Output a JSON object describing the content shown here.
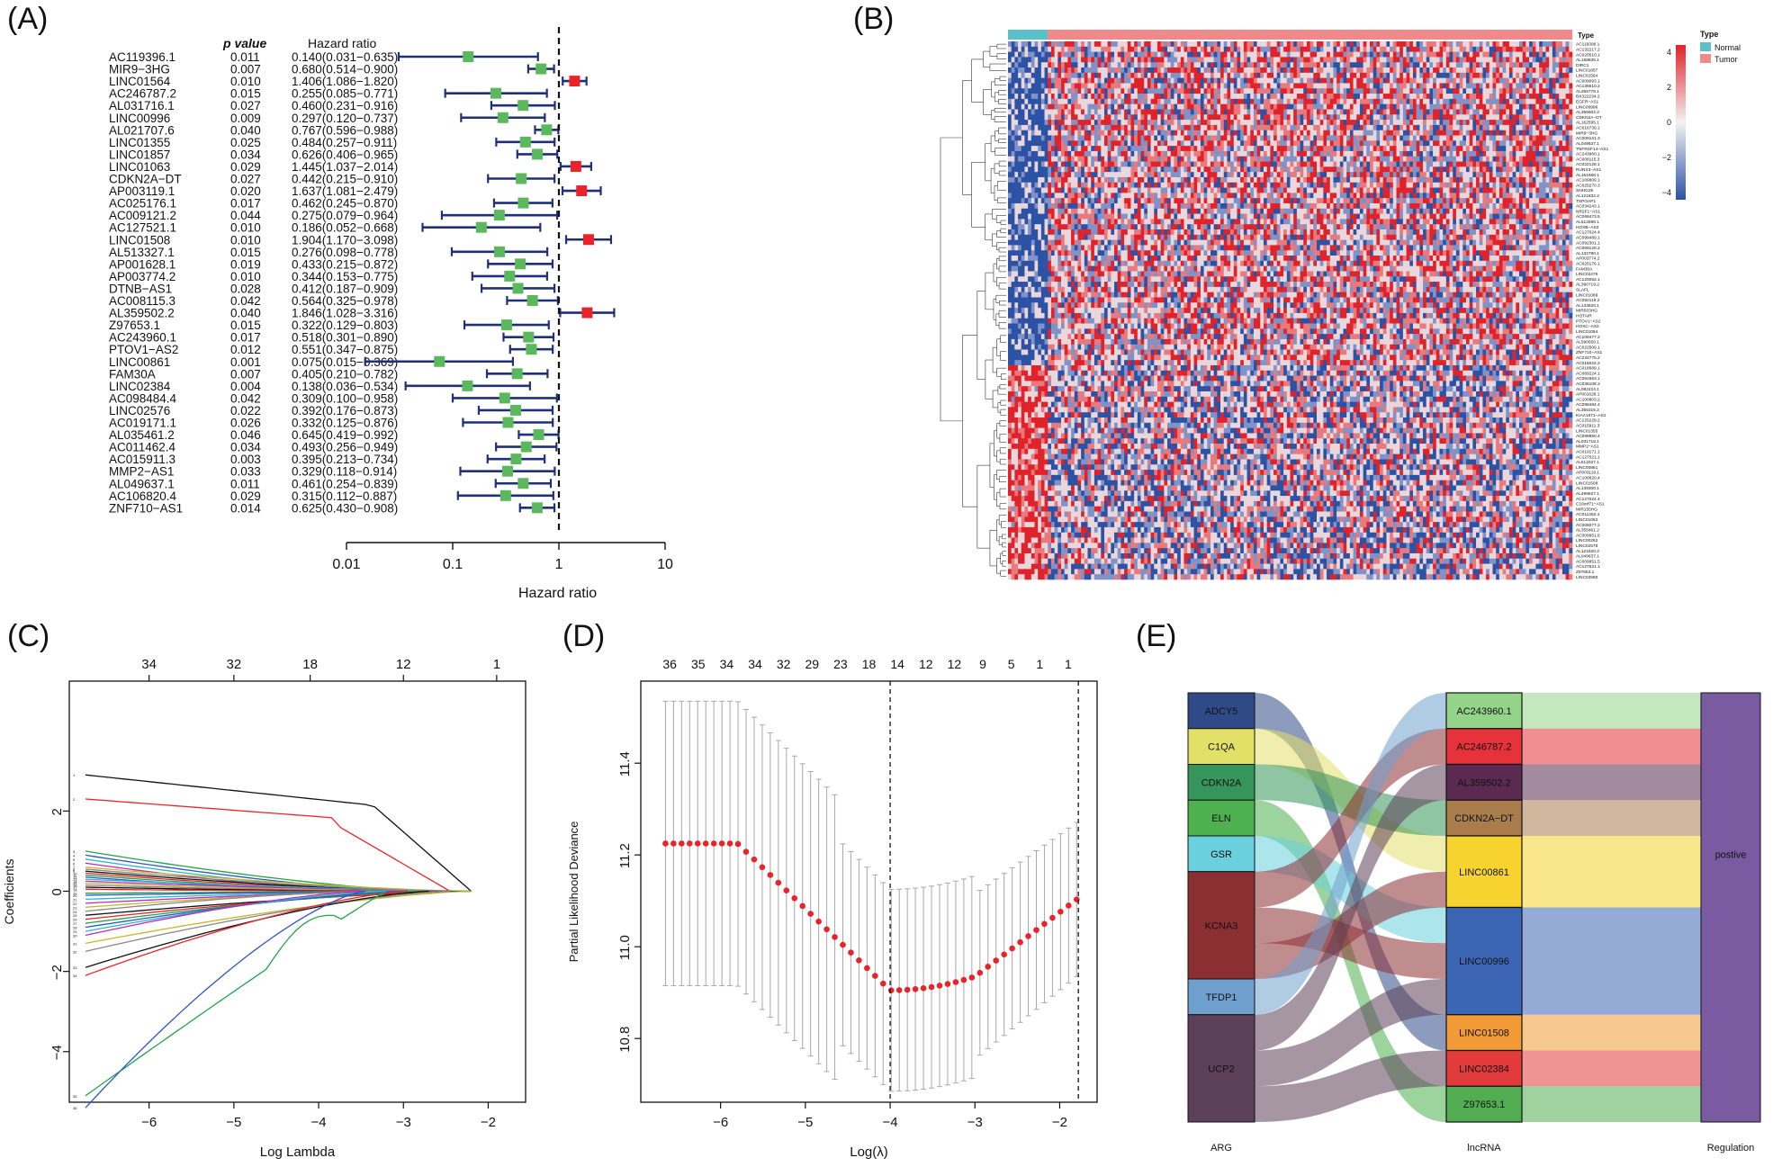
{
  "panels": {
    "A": "(A)",
    "B": "(B)",
    "C": "(C)",
    "D": "(D)",
    "E": "(E)"
  },
  "forest": {
    "headers": {
      "pvalue": "p value",
      "hr": "Hazard ratio"
    },
    "xlabel": "Hazard ratio",
    "xticks": [
      "0.01",
      "0.1",
      "1",
      "10"
    ],
    "colors": {
      "protective": "#5cb85c",
      "risk": "#e8242a",
      "ci": "#1f2f7a"
    },
    "rows": [
      {
        "gene": "AC119396.1",
        "p": "0.011",
        "hr_text": "0.140(0.031−0.635)",
        "hr": 0.14,
        "lo": 0.031,
        "hi": 0.635
      },
      {
        "gene": "MIR9−3HG",
        "p": "0.007",
        "hr_text": "0.680(0.514−0.900)",
        "hr": 0.68,
        "lo": 0.514,
        "hi": 0.9
      },
      {
        "gene": "LINC01564",
        "p": "0.010",
        "hr_text": "1.406(1.086−1.820)",
        "hr": 1.406,
        "lo": 1.086,
        "hi": 1.82
      },
      {
        "gene": "AC246787.2",
        "p": "0.015",
        "hr_text": "0.255(0.085−0.771)",
        "hr": 0.255,
        "lo": 0.085,
        "hi": 0.771
      },
      {
        "gene": "AL031716.1",
        "p": "0.027",
        "hr_text": "0.460(0.231−0.916)",
        "hr": 0.46,
        "lo": 0.231,
        "hi": 0.916
      },
      {
        "gene": "LINC00996",
        "p": "0.009",
        "hr_text": "0.297(0.120−0.737)",
        "hr": 0.297,
        "lo": 0.12,
        "hi": 0.737
      },
      {
        "gene": "AL021707.6",
        "p": "0.040",
        "hr_text": "0.767(0.596−0.988)",
        "hr": 0.767,
        "lo": 0.596,
        "hi": 0.988
      },
      {
        "gene": "LINC01355",
        "p": "0.025",
        "hr_text": "0.484(0.257−0.911)",
        "hr": 0.484,
        "lo": 0.257,
        "hi": 0.911
      },
      {
        "gene": "LINC01857",
        "p": "0.034",
        "hr_text": "0.626(0.406−0.965)",
        "hr": 0.626,
        "lo": 0.406,
        "hi": 0.965
      },
      {
        "gene": "LINC01063",
        "p": "0.029",
        "hr_text": "1.445(1.037−2.014)",
        "hr": 1.445,
        "lo": 1.037,
        "hi": 2.014
      },
      {
        "gene": "CDKN2A−DT",
        "p": "0.027",
        "hr_text": "0.442(0.215−0.910)",
        "hr": 0.442,
        "lo": 0.215,
        "hi": 0.91
      },
      {
        "gene": "AP003119.1",
        "p": "0.020",
        "hr_text": "1.637(1.081−2.479)",
        "hr": 1.637,
        "lo": 1.081,
        "hi": 2.479
      },
      {
        "gene": "AC025176.1",
        "p": "0.017",
        "hr_text": "0.462(0.245−0.870)",
        "hr": 0.462,
        "lo": 0.245,
        "hi": 0.87
      },
      {
        "gene": "AC009121.2",
        "p": "0.044",
        "hr_text": "0.275(0.079−0.964)",
        "hr": 0.275,
        "lo": 0.079,
        "hi": 0.964
      },
      {
        "gene": "AC127521.1",
        "p": "0.010",
        "hr_text": "0.186(0.052−0.668)",
        "hr": 0.186,
        "lo": 0.052,
        "hi": 0.668
      },
      {
        "gene": "LINC01508",
        "p": "0.010",
        "hr_text": "1.904(1.170−3.098)",
        "hr": 1.904,
        "lo": 1.17,
        "hi": 3.098
      },
      {
        "gene": "AL513327.1",
        "p": "0.015",
        "hr_text": "0.276(0.098−0.778)",
        "hr": 0.276,
        "lo": 0.098,
        "hi": 0.778
      },
      {
        "gene": "AP001628.1",
        "p": "0.019",
        "hr_text": "0.433(0.215−0.872)",
        "hr": 0.433,
        "lo": 0.215,
        "hi": 0.872
      },
      {
        "gene": "AP003774.2",
        "p": "0.010",
        "hr_text": "0.344(0.153−0.775)",
        "hr": 0.344,
        "lo": 0.153,
        "hi": 0.775
      },
      {
        "gene": "DTNB−AS1",
        "p": "0.028",
        "hr_text": "0.412(0.187−0.909)",
        "hr": 0.412,
        "lo": 0.187,
        "hi": 0.909
      },
      {
        "gene": "AC008115.3",
        "p": "0.042",
        "hr_text": "0.564(0.325−0.978)",
        "hr": 0.564,
        "lo": 0.325,
        "hi": 0.978
      },
      {
        "gene": "AL359502.2",
        "p": "0.040",
        "hr_text": "1.846(1.028−3.316)",
        "hr": 1.846,
        "lo": 1.028,
        "hi": 3.316
      },
      {
        "gene": "Z97653.1",
        "p": "0.015",
        "hr_text": "0.322(0.129−0.803)",
        "hr": 0.322,
        "lo": 0.129,
        "hi": 0.803
      },
      {
        "gene": "AC243960.1",
        "p": "0.017",
        "hr_text": "0.518(0.301−0.890)",
        "hr": 0.518,
        "lo": 0.301,
        "hi": 0.89
      },
      {
        "gene": "PTOV1−AS2",
        "p": "0.012",
        "hr_text": "0.551(0.347−0.875)",
        "hr": 0.551,
        "lo": 0.347,
        "hi": 0.875
      },
      {
        "gene": "LINC00861",
        "p": "0.001",
        "hr_text": "0.075(0.015−0.369)",
        "hr": 0.075,
        "lo": 0.015,
        "hi": 0.369
      },
      {
        "gene": "FAM30A",
        "p": "0.007",
        "hr_text": "0.405(0.210−0.782)",
        "hr": 0.405,
        "lo": 0.21,
        "hi": 0.782
      },
      {
        "gene": "LINC02384",
        "p": "0.004",
        "hr_text": "0.138(0.036−0.534)",
        "hr": 0.138,
        "lo": 0.036,
        "hi": 0.534
      },
      {
        "gene": "AC098484.4",
        "p": "0.042",
        "hr_text": "0.309(0.100−0.958)",
        "hr": 0.309,
        "lo": 0.1,
        "hi": 0.958
      },
      {
        "gene": "LINC02576",
        "p": "0.022",
        "hr_text": "0.392(0.176−0.873)",
        "hr": 0.392,
        "lo": 0.176,
        "hi": 0.873
      },
      {
        "gene": "AC019171.1",
        "p": "0.026",
        "hr_text": "0.332(0.125−0.876)",
        "hr": 0.332,
        "lo": 0.125,
        "hi": 0.876
      },
      {
        "gene": "AL035461.2",
        "p": "0.046",
        "hr_text": "0.645(0.419−0.992)",
        "hr": 0.645,
        "lo": 0.419,
        "hi": 0.992
      },
      {
        "gene": "AC011462.4",
        "p": "0.034",
        "hr_text": "0.493(0.256−0.949)",
        "hr": 0.493,
        "lo": 0.256,
        "hi": 0.949
      },
      {
        "gene": "AC015911.3",
        "p": "0.003",
        "hr_text": "0.395(0.213−0.734)",
        "hr": 0.395,
        "lo": 0.213,
        "hi": 0.734
      },
      {
        "gene": "MMP2−AS1",
        "p": "0.033",
        "hr_text": "0.329(0.118−0.914)",
        "hr": 0.329,
        "lo": 0.118,
        "hi": 0.914
      },
      {
        "gene": "AL049637.1",
        "p": "0.011",
        "hr_text": "0.461(0.254−0.839)",
        "hr": 0.461,
        "lo": 0.254,
        "hi": 0.839
      },
      {
        "gene": "AC106820.4",
        "p": "0.029",
        "hr_text": "0.315(0.112−0.887)",
        "hr": 0.315,
        "lo": 0.112,
        "hi": 0.887
      },
      {
        "gene": "ZNF710−AS1",
        "p": "0.014",
        "hr_text": "0.625(0.430−0.908)",
        "hr": 0.625,
        "lo": 0.43,
        "hi": 0.908
      }
    ]
  },
  "heatmap": {
    "type_label": "Type",
    "legend_title": "Type",
    "legend_normal": "Normal",
    "legend_tumor": "Tumor",
    "scale_ticks": [
      "4",
      "2",
      "0",
      "−2",
      "−4"
    ],
    "colors": {
      "normal": "#5bc0c8",
      "tumor": "#f08a8a",
      "high": "#e0232a",
      "mid": "#f2f2f2",
      "low": "#2c52a5"
    },
    "genes": [
      "AC119396.1",
      "AC132217.2",
      "AC020510.1",
      "AL158835.1",
      "DIRC1",
      "LINC01857",
      "LINC01564",
      "AC009093.1",
      "AC136510.2",
      "AL355779.1",
      "BX322234.2",
      "EGFR−AS1",
      "LINC00996",
      "AL356602.2",
      "CDKN2A−DT",
      "AL162595.1",
      "AC016739.1",
      "MIR9−3HG",
      "AC009121.3",
      "AL049637.1",
      "TNFRSF14−AS1",
      "AC243960.1",
      "AC008115.3",
      "AC022128.1",
      "RUNX3−AS1",
      "AL161668.1",
      "AC109809.1",
      "AC025270.3",
      "SNHG25",
      "AL121832.2",
      "TSPOAP1",
      "AC034243.1",
      "NR2F1−AS1",
      "AC068473.5",
      "AL512598.1",
      "HOXB−AS3",
      "AC127024.4",
      "AC099489.1",
      "AC092301.1",
      "AC009120.2",
      "AL132780.1",
      "AP003774.2",
      "AC025176.1",
      "FAM30A",
      "LINC02476",
      "AC120053.1",
      "AL390719.2",
      "SLAFL",
      "LINC01089",
      "AC092119.2",
      "AL133520.1",
      "MIR503HG",
      "HOTAIR",
      "PTOV1−AS2",
      "HOXC−AS2",
      "LINC01094",
      "AC108477.2",
      "AL590550.1",
      "AC022509.1",
      "ZNF710−AS1",
      "AC234775.2",
      "AC016022.2",
      "AC018689.1",
      "AC069224.1",
      "AC091563.1",
      "AC036108.3",
      "AL082424.1",
      "AP001628.1",
      "AC100803.2",
      "AC098484.4",
      "AL355316.2",
      "KIAA1671−AS1",
      "AC125229.2",
      "AC015911.3",
      "LINC01355",
      "AC098850.4",
      "AL031716.1",
      "MMP2−AS1",
      "AC019171.1",
      "AC127521.1",
      "AL513327.1",
      "LINC00861",
      "AP003119.1",
      "AC106820.4",
      "LINC01508",
      "AL139300.1",
      "AL499627.1",
      "AC127024.4",
      "C10orf71−AS1",
      "MIR155HG",
      "AC011462.4",
      "LINC01063",
      "AC006077.2",
      "AL355461.2",
      "AC009951.6",
      "LINC00262",
      "LINC02576",
      "AL121820.2",
      "AL049637.1",
      "AC009951.5",
      "AC127521.1",
      "Z97653.1",
      "LINC02580"
    ]
  },
  "lasso": {
    "xlabel": "Log Lambda",
    "ylabel": "Coefficients",
    "xticks": [
      "−6",
      "−5",
      "−4",
      "−3",
      "−2"
    ],
    "yticks": [
      "2",
      "0",
      "−2",
      "−4"
    ],
    "top_ticks": [
      "34",
      "32",
      "18",
      "12",
      "1"
    ]
  },
  "cv": {
    "xlabel": "Log(λ)",
    "ylabel": "Partial Likelihood Deviance",
    "xticks": [
      "−6",
      "−5",
      "−4",
      "−3",
      "−2"
    ],
    "yticks": [
      "11.4",
      "11.2",
      "11.0",
      "10.8"
    ],
    "top_ticks": [
      "36",
      "35",
      "34",
      "34",
      "32",
      "29",
      "23",
      "18",
      "14",
      "12",
      "12",
      "9",
      "5",
      "1",
      "1"
    ],
    "point_color": "#e8242a"
  },
  "sankey": {
    "col_labels": {
      "arg": "ARG",
      "lnc": "lncRNA",
      "reg": "Regulation"
    },
    "args": [
      {
        "name": "ADCY5",
        "color": "#2f4a86",
        "w": 1
      },
      {
        "name": "C1QA",
        "color": "#e3e068",
        "w": 1
      },
      {
        "name": "CDKN2A",
        "color": "#35955a",
        "w": 1
      },
      {
        "name": "ELN",
        "color": "#4cb14e",
        "w": 1
      },
      {
        "name": "GSR",
        "color": "#6ad0de",
        "w": 1
      },
      {
        "name": "KCNA3",
        "color": "#8c2f33",
        "w": 3
      },
      {
        "name": "TFDP1",
        "color": "#6fa0cd",
        "w": 1
      },
      {
        "name": "UCP2",
        "color": "#5c3f58",
        "w": 3
      }
    ],
    "lncs": [
      {
        "name": "AC243960.1",
        "color": "#93d38a",
        "w": 1
      },
      {
        "name": "AC246787.2",
        "color": "#e6323a",
        "w": 1
      },
      {
        "name": "AL359502.2",
        "color": "#5a2a50",
        "w": 1
      },
      {
        "name": "CDKN2A−DT",
        "color": "#a97c4c",
        "w": 1
      },
      {
        "name": "LINC00861",
        "color": "#f6d32e",
        "w": 2
      },
      {
        "name": "LINC00996",
        "color": "#3c66b4",
        "w": 3
      },
      {
        "name": "LINC01508",
        "color": "#f29a36",
        "w": 1
      },
      {
        "name": "LINC02384",
        "color": "#e23b3b",
        "w": 1
      },
      {
        "name": "Z97653.1",
        "color": "#52ad52",
        "w": 1
      }
    ],
    "links": [
      {
        "s": "ADCY5",
        "t": "LINC01508"
      },
      {
        "s": "C1QA",
        "t": "LINC00861"
      },
      {
        "s": "CDKN2A",
        "t": "CDKN2A−DT"
      },
      {
        "s": "ELN",
        "t": "Z97653.1"
      },
      {
        "s": "GSR",
        "t": "LINC00996"
      },
      {
        "s": "KCNA3",
        "t": "AC246787.2"
      },
      {
        "s": "KCNA3",
        "t": "LINC00996"
      },
      {
        "s": "KCNA3",
        "t": "LINC00861"
      },
      {
        "s": "TFDP1",
        "t": "AC243960.1"
      },
      {
        "s": "UCP2",
        "t": "AL359502.2"
      },
      {
        "s": "UCP2",
        "t": "LINC00996"
      },
      {
        "s": "UCP2",
        "t": "LINC02384"
      }
    ],
    "regulation": {
      "name": "postive",
      "color": "#7a5aa0"
    }
  }
}
